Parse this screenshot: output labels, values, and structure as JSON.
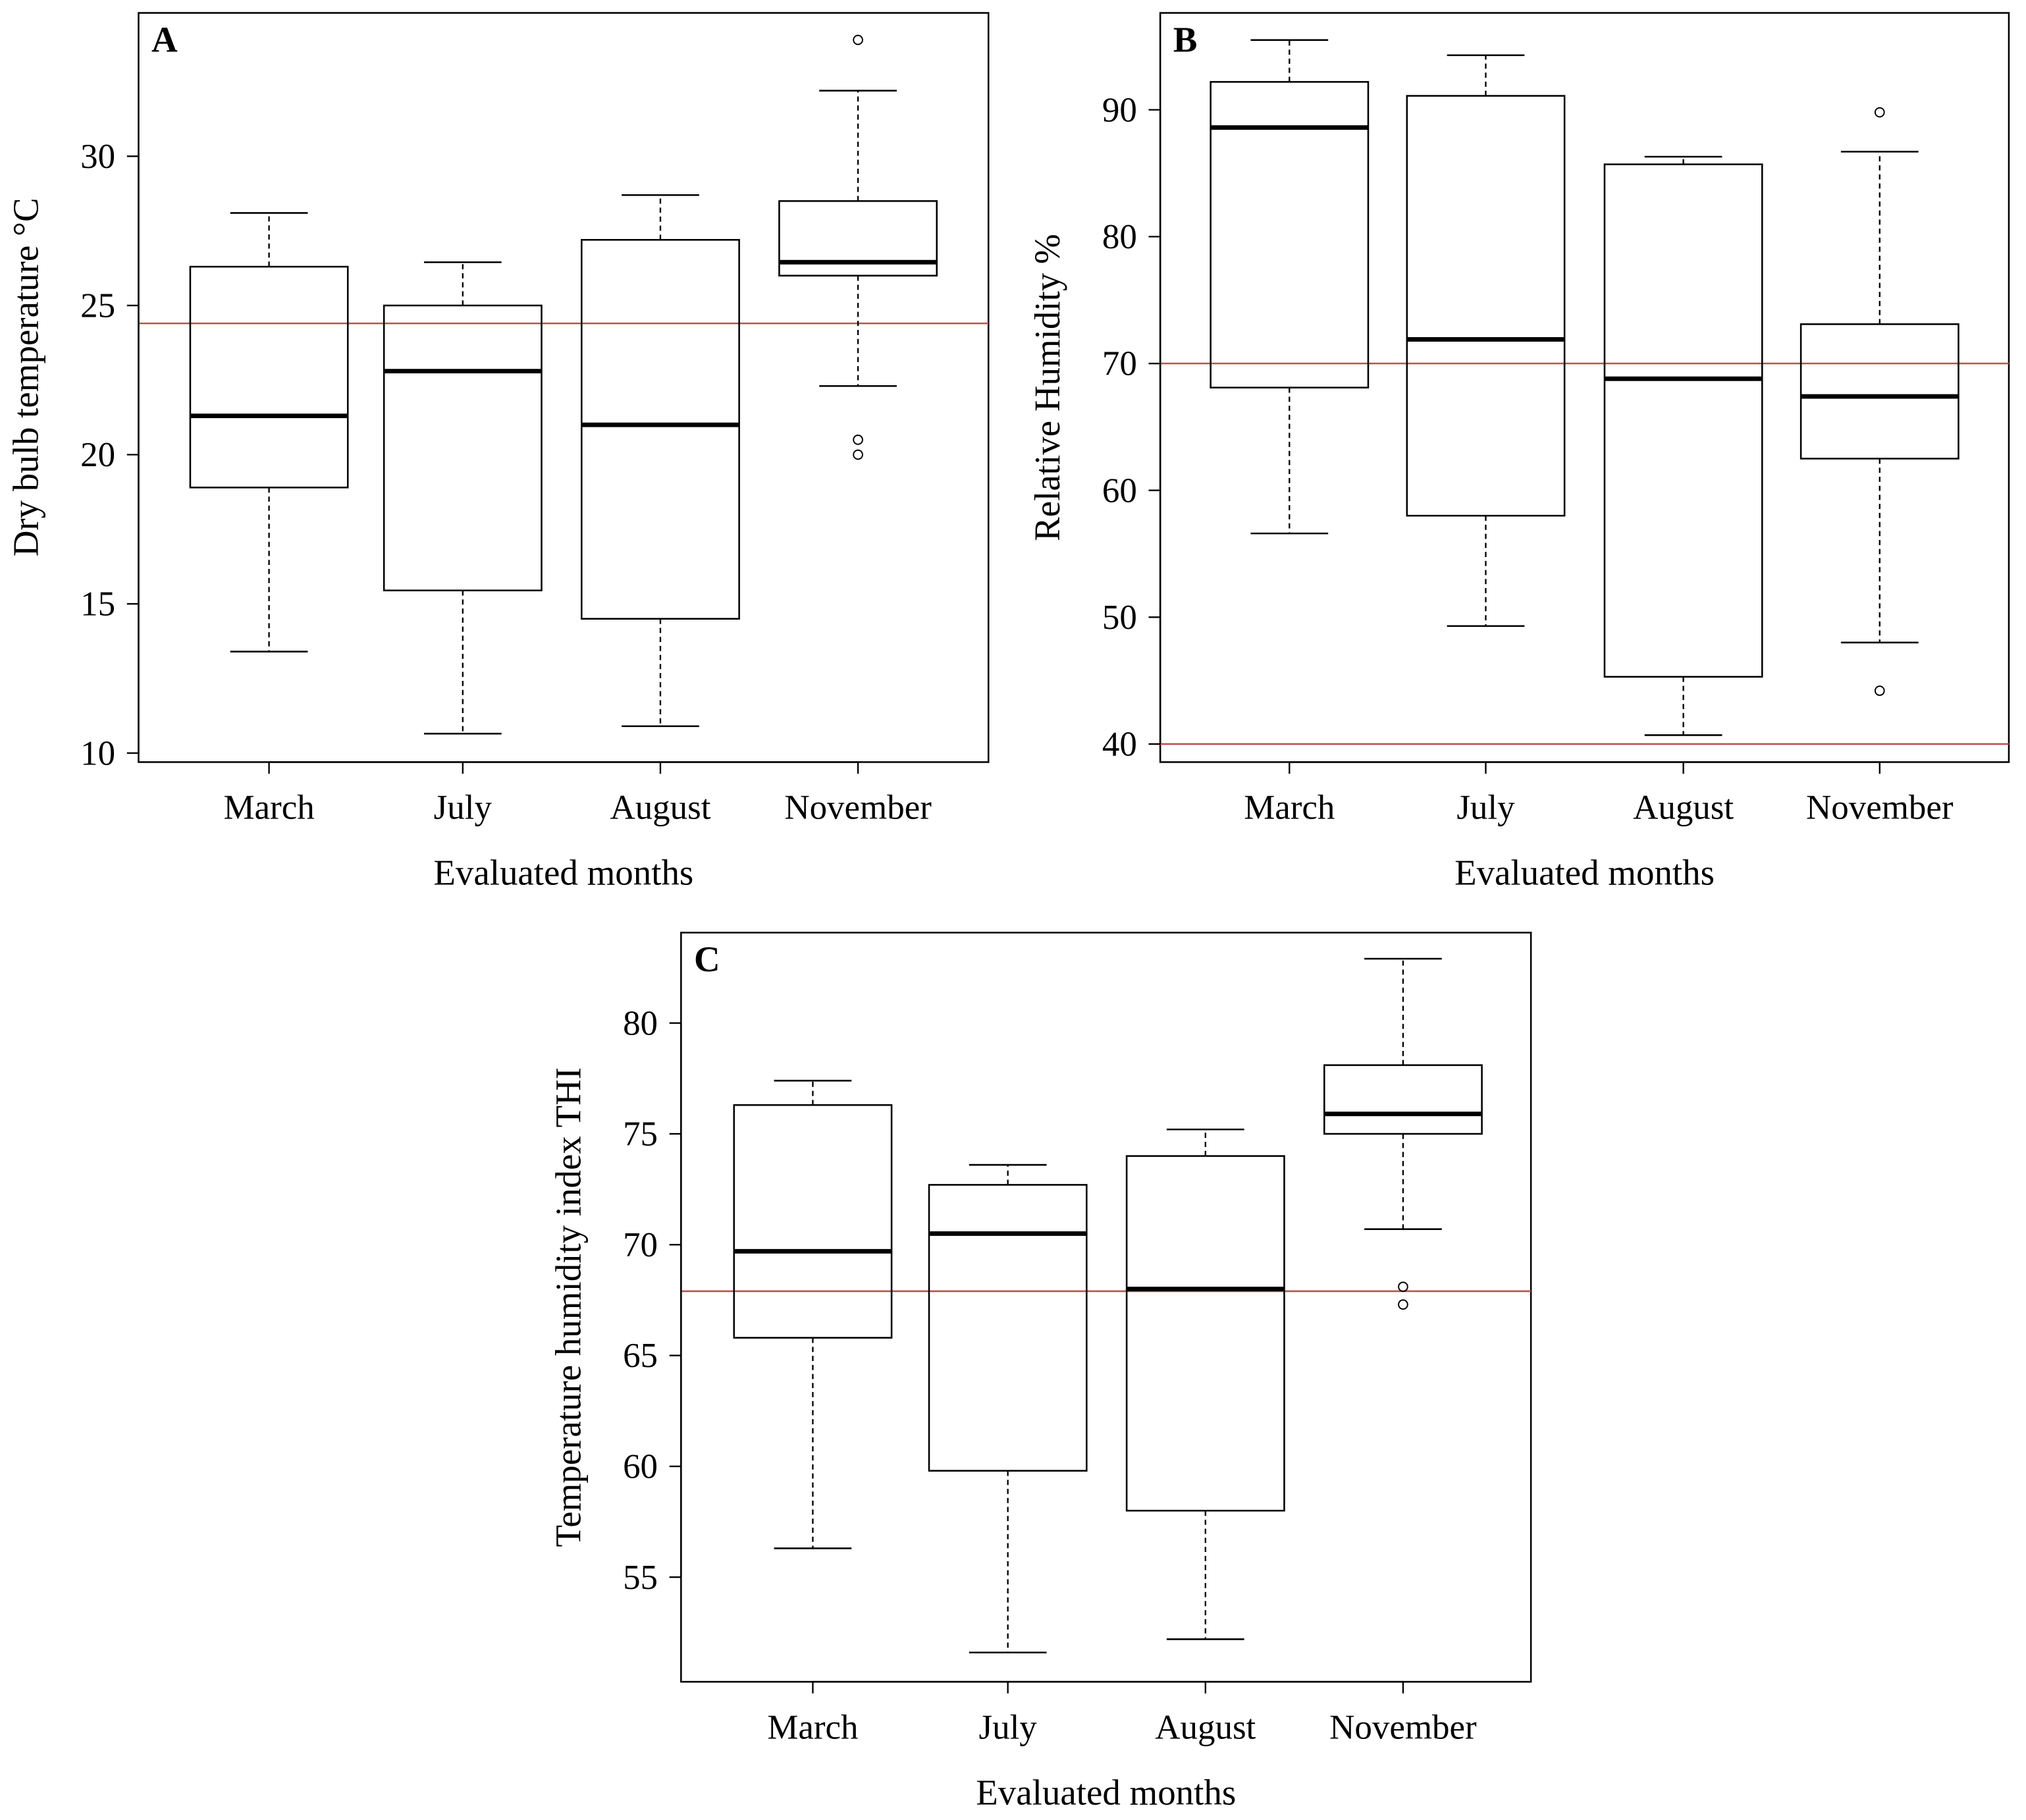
{
  "chart_data": [
    {
      "type": "box",
      "panel_label": "A",
      "xlabel": "Evaluated months",
      "ylabel": "Dry bulb temperature °C",
      "categories": [
        "March",
        "July",
        "August",
        "November"
      ],
      "yticks": [
        10,
        15,
        20,
        25,
        30
      ],
      "boxes": [
        {
          "whisker_low": 13.4,
          "q1": 18.9,
          "median": 21.3,
          "q3": 26.3,
          "whisker_high": 28.1,
          "outliers": []
        },
        {
          "whisker_low": 10.65,
          "q1": 15.45,
          "median": 22.8,
          "q3": 25.0,
          "whisker_high": 26.45,
          "outliers": []
        },
        {
          "whisker_low": 10.9,
          "q1": 14.5,
          "median": 21.0,
          "q3": 27.2,
          "whisker_high": 28.7,
          "outliers": []
        },
        {
          "whisker_low": 22.3,
          "q1": 26.0,
          "median": 26.45,
          "q3": 28.5,
          "whisker_high": 32.2,
          "outliers": [
            33.9,
            20.5,
            20.0
          ]
        }
      ],
      "reference_lines": [
        24.4
      ],
      "reference_color": "#c0504d"
    },
    {
      "type": "box",
      "panel_label": "B",
      "xlabel": "Evaluated months",
      "ylabel": "Relative Humidity %",
      "categories": [
        "March",
        "July",
        "August",
        "November"
      ],
      "yticks": [
        40,
        50,
        60,
        70,
        80,
        90
      ],
      "boxes": [
        {
          "whisker_low": 56.6,
          "q1": 68.1,
          "median": 88.6,
          "q3": 92.2,
          "whisker_high": 95.5,
          "outliers": []
        },
        {
          "whisker_low": 49.3,
          "q1": 58.0,
          "median": 71.9,
          "q3": 91.1,
          "whisker_high": 94.3,
          "outliers": []
        },
        {
          "whisker_low": 40.7,
          "q1": 45.3,
          "median": 68.8,
          "q3": 85.7,
          "whisker_high": 86.3,
          "outliers": []
        },
        {
          "whisker_low": 48.0,
          "q1": 62.5,
          "median": 67.4,
          "q3": 73.1,
          "whisker_high": 86.7,
          "outliers": [
            89.8,
            44.2
          ]
        }
      ],
      "reference_lines": [
        70,
        40
      ],
      "reference_color": "#c0504d"
    },
    {
      "type": "box",
      "panel_label": "C",
      "xlabel": "Evaluated months",
      "ylabel": "Temperature humidity index THI",
      "categories": [
        "March",
        "July",
        "August",
        "November"
      ],
      "yticks": [
        55,
        60,
        65,
        70,
        75,
        80
      ],
      "boxes": [
        {
          "whisker_low": 56.3,
          "q1": 65.8,
          "median": 69.7,
          "q3": 76.3,
          "whisker_high": 77.4,
          "outliers": []
        },
        {
          "whisker_low": 51.6,
          "q1": 59.8,
          "median": 70.5,
          "q3": 72.7,
          "whisker_high": 73.6,
          "outliers": []
        },
        {
          "whisker_low": 52.2,
          "q1": 58.0,
          "median": 68.0,
          "q3": 74.0,
          "whisker_high": 75.2,
          "outliers": []
        },
        {
          "whisker_low": 70.7,
          "q1": 75.0,
          "median": 75.9,
          "q3": 78.1,
          "whisker_high": 82.9,
          "outliers": [
            68.1,
            67.3
          ]
        }
      ],
      "reference_lines": [
        67.9
      ],
      "reference_color": "#c0504d"
    }
  ]
}
